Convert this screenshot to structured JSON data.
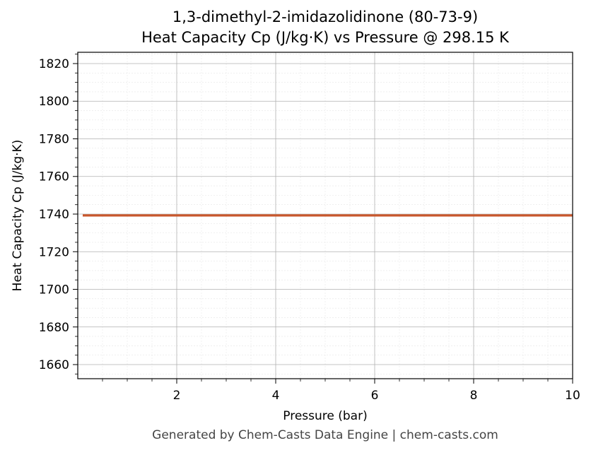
{
  "chart_data": {
    "type": "line",
    "title": "1,3-dimethyl-2-imidazolidinone (80-73-9)",
    "subtitle": "Heat Capacity Cp (J/kg·K) vs Pressure @ 298.15 K",
    "xlabel": "Pressure (bar)",
    "ylabel": "Heat Capacity Cp (J/kg·K)",
    "xlim": [
      0.0,
      10.0
    ],
    "ylim": [
      1652.5,
      1826.0
    ],
    "x_ticks": [
      2,
      4,
      6,
      8,
      10
    ],
    "y_ticks": [
      1660,
      1680,
      1700,
      1720,
      1740,
      1760,
      1780,
      1800,
      1820
    ],
    "grid": true,
    "series": [
      {
        "color": "#c8572c",
        "x": [
          0.1,
          10.0
        ],
        "y": [
          1739.3,
          1739.3
        ]
      }
    ]
  },
  "footer": "Generated by Chem-Casts Data Engine | chem-casts.com"
}
